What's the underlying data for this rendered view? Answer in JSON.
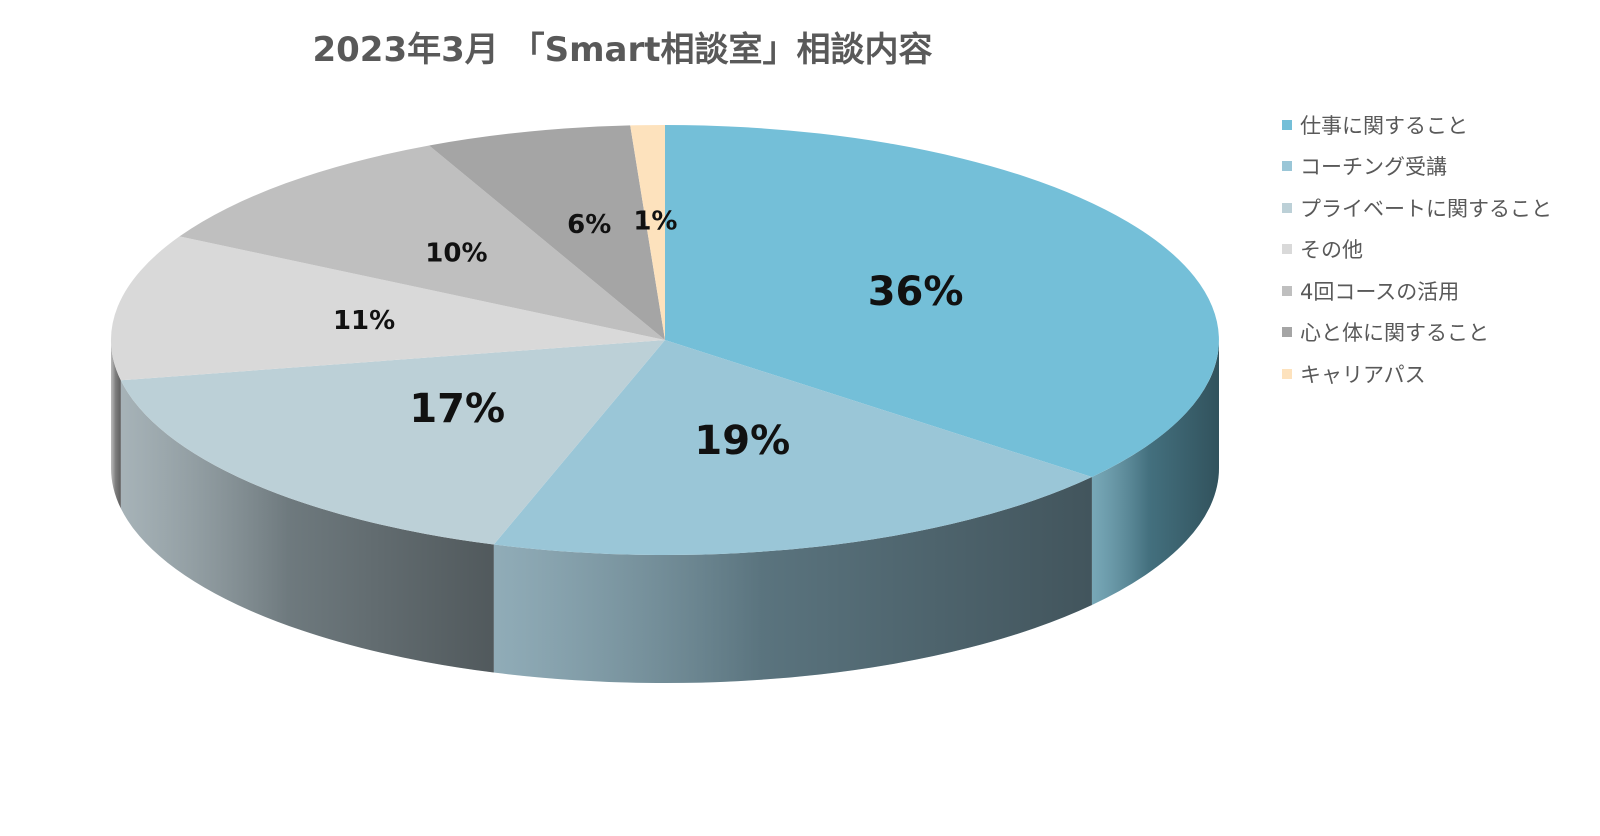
{
  "chart_data": {
    "type": "pie",
    "title": "2023年3月 「Smart相談室」相談内容",
    "slices": [
      {
        "label": "仕事に関すること",
        "value": 36,
        "display": "36%",
        "color": "#74bfd8"
      },
      {
        "label": "コーチング受講",
        "value": 19,
        "display": "19%",
        "color": "#9ac6d7"
      },
      {
        "label": "プライベートに関すること",
        "value": 17,
        "display": "17%",
        "color": "#bcd0d7"
      },
      {
        "label": "その他",
        "value": 11,
        "display": "11%",
        "color": "#d9d9d9"
      },
      {
        "label": "4回コースの活用",
        "value": 10,
        "display": "10%",
        "color": "#bfbfbf"
      },
      {
        "label": "心と体に関すること",
        "value": 6,
        "display": "6%",
        "color": "#a5a5a5"
      },
      {
        "label": "キャリアパス",
        "value": 1,
        "display": "1%",
        "color": "#fde2bd"
      }
    ],
    "legend_position": "right",
    "3d": true
  }
}
